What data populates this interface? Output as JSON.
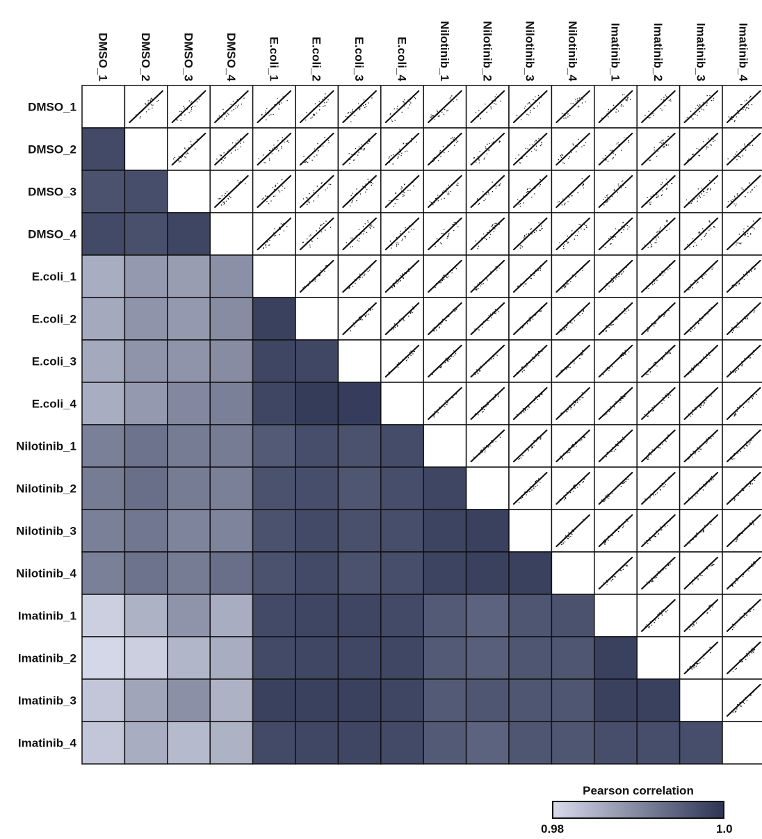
{
  "chart_data": {
    "type": "heatmap",
    "labels": [
      "DMSO_1",
      "DMSO_2",
      "DMSO_3",
      "DMSO_4",
      "E.coli_1",
      "E.coli_2",
      "E.coli_3",
      "E.coli_4",
      "Nilotinib_1",
      "Nilotinib_2",
      "Nilotinib_3",
      "Nilotinib_4",
      "Imatinib_1",
      "Imatinib_2",
      "Imatinib_3",
      "Imatinib_4"
    ],
    "upper_triangle": "scatter",
    "diagonal": "blank",
    "lower_triangle_values": [
      [],
      [
        0.9975
      ],
      [
        0.9965,
        0.997
      ],
      [
        0.9975,
        0.9968,
        0.998
      ],
      [
        0.9855,
        0.988,
        0.9875,
        0.989
      ],
      [
        0.986,
        0.9885,
        0.988,
        0.9895,
        0.9985
      ],
      [
        0.986,
        0.9885,
        0.9885,
        0.9895,
        0.998,
        0.9978
      ],
      [
        0.9855,
        0.988,
        0.99,
        0.991,
        0.998,
        0.9992,
        0.999
      ],
      [
        0.991,
        0.9925,
        0.9915,
        0.9915,
        0.9955,
        0.997,
        0.9965,
        0.9972
      ],
      [
        0.9915,
        0.993,
        0.9915,
        0.991,
        0.9965,
        0.997,
        0.996,
        0.997,
        0.998
      ],
      [
        0.991,
        0.992,
        0.9905,
        0.9905,
        0.9965,
        0.9975,
        0.9968,
        0.997,
        0.9982,
        0.9985
      ],
      [
        0.991,
        0.9925,
        0.9915,
        0.993,
        0.9965,
        0.9975,
        0.9965,
        0.997,
        0.9982,
        0.9985,
        0.9985
      ],
      [
        0.9815,
        0.985,
        0.9885,
        0.9855,
        0.9975,
        0.998,
        0.998,
        0.9975,
        0.9955,
        0.9945,
        0.996,
        0.9965
      ],
      [
        0.9805,
        0.9815,
        0.9845,
        0.9855,
        0.9975,
        0.9978,
        0.9978,
        0.9978,
        0.9955,
        0.995,
        0.996,
        0.996,
        0.9985
      ],
      [
        0.9825,
        0.9865,
        0.989,
        0.985,
        0.9985,
        0.9985,
        0.9985,
        0.998,
        0.9955,
        0.996,
        0.996,
        0.996,
        0.9985,
        0.9985
      ],
      [
        0.9825,
        0.9855,
        0.984,
        0.985,
        0.9975,
        0.9978,
        0.998,
        0.9975,
        0.9955,
        0.9945,
        0.996,
        0.996,
        0.997,
        0.997,
        0.997
      ]
    ],
    "colorbar": {
      "title": "Pearson correlation",
      "min": 0.98,
      "max": 1.0,
      "min_label": "0.98",
      "max_label": "1.0",
      "color_low": "#d8dbeb",
      "color_high": "#2d3554"
    }
  }
}
